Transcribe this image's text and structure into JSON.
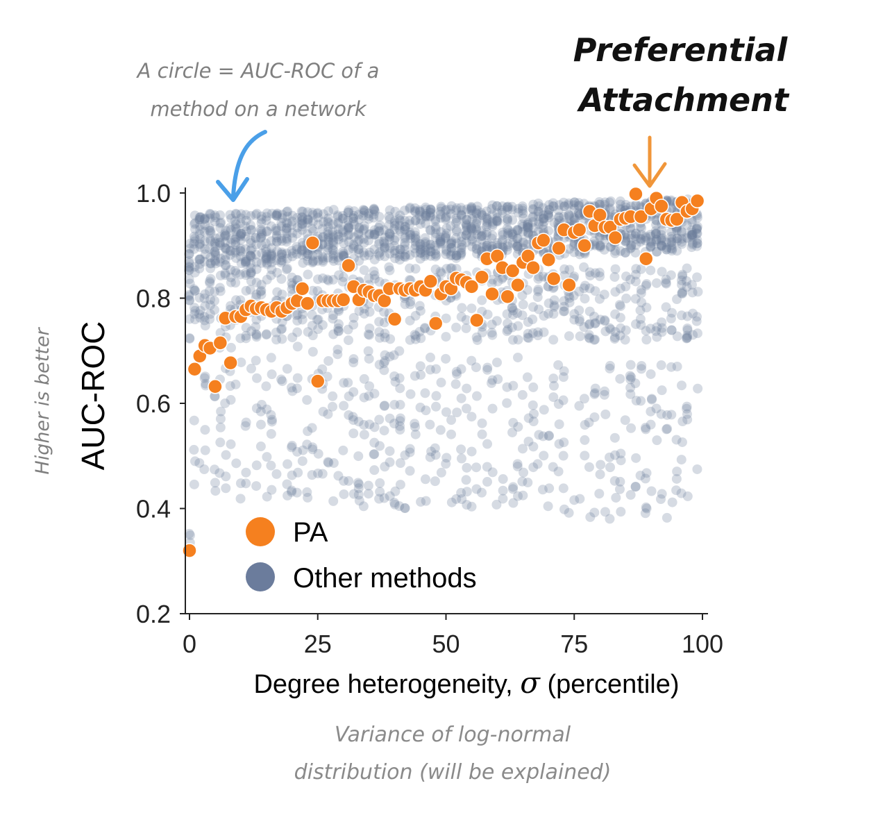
{
  "annotations": {
    "circle_note_line1": "A circle = AUC-ROC of a",
    "circle_note_line2": "method on a network",
    "pa_note_line1": "Preferential",
    "pa_note_line2": "Attachment",
    "y_side_note": "Higher is better",
    "x_note_line1": "Variance of log-normal",
    "x_note_line2": "distribution (will be explained)"
  },
  "colors": {
    "pa": "#f5801f",
    "other": "#6b7c9c",
    "circle_arrow": "#4a9fe8",
    "pa_arrow": "#f0963a",
    "note_gray": "#8a8a8a"
  },
  "chart_data": {
    "type": "scatter",
    "title": "",
    "xlabel_prefix": "Degree heterogeneity, ",
    "xlabel_symbol": "σ",
    "xlabel_suffix": " (percentile)",
    "ylabel": "AUC-ROC",
    "xlim": [
      -1,
      100
    ],
    "ylim": [
      0.2,
      1.0
    ],
    "xticks": [
      0,
      25,
      50,
      75,
      100
    ],
    "xtick_labels": [
      "0",
      "25",
      "50",
      "75",
      "100"
    ],
    "yticks": [
      0.2,
      0.4,
      0.6,
      0.8,
      1.0
    ],
    "ytick_labels": [
      "0.2",
      "0.4",
      "0.6",
      "0.8",
      "1.0"
    ],
    "grid": false,
    "legend_position": "lower-left",
    "series": [
      {
        "name": "PA",
        "x": [
          0,
          1,
          2,
          3,
          4,
          5,
          6,
          7,
          8,
          9,
          10,
          11,
          12,
          13,
          14,
          15,
          16,
          17,
          18,
          19,
          20,
          21,
          22,
          23,
          24,
          25,
          26,
          27,
          28,
          29,
          30,
          31,
          32,
          33,
          34,
          35,
          36,
          37,
          38,
          39,
          40,
          41,
          42,
          43,
          44,
          45,
          46,
          47,
          48,
          49,
          50,
          51,
          52,
          53,
          54,
          55,
          56,
          57,
          58,
          59,
          60,
          61,
          62,
          63,
          64,
          65,
          66,
          67,
          68,
          69,
          70,
          71,
          72,
          73,
          74,
          75,
          76,
          77,
          78,
          79,
          80,
          81,
          82,
          83,
          84,
          85,
          86,
          87,
          88,
          89,
          90,
          91,
          92,
          93,
          94,
          95,
          96,
          97,
          98,
          99
        ],
        "y": [
          0.32,
          0.665,
          0.69,
          0.71,
          0.705,
          0.632,
          0.715,
          0.762,
          0.677,
          0.765,
          0.765,
          0.778,
          0.785,
          0.78,
          0.782,
          0.778,
          0.775,
          0.782,
          0.775,
          0.782,
          0.79,
          0.795,
          0.818,
          0.79,
          0.905,
          0.642,
          0.795,
          0.795,
          0.795,
          0.795,
          0.797,
          0.862,
          0.822,
          0.797,
          0.815,
          0.812,
          0.805,
          0.805,
          0.795,
          0.818,
          0.76,
          0.818,
          0.815,
          0.818,
          0.815,
          0.822,
          0.815,
          0.832,
          0.752,
          0.808,
          0.822,
          0.818,
          0.838,
          0.835,
          0.83,
          0.822,
          0.758,
          0.84,
          0.875,
          0.808,
          0.88,
          0.858,
          0.803,
          0.852,
          0.825,
          0.868,
          0.88,
          0.858,
          0.905,
          0.91,
          0.873,
          0.837,
          0.895,
          0.93,
          0.825,
          0.925,
          0.93,
          0.9,
          0.965,
          0.938,
          0.958,
          0.935,
          0.935,
          0.915,
          0.95,
          0.952,
          0.955,
          0.998,
          0.955,
          0.875,
          0.97,
          0.99,
          0.975,
          0.95,
          0.948,
          0.95,
          0.982,
          0.965,
          0.97,
          0.985
        ]
      },
      {
        "name": "Other methods",
        "n_per_network": 22
      }
    ]
  },
  "legend": {
    "pa_label": "PA",
    "other_label": "Other methods"
  }
}
